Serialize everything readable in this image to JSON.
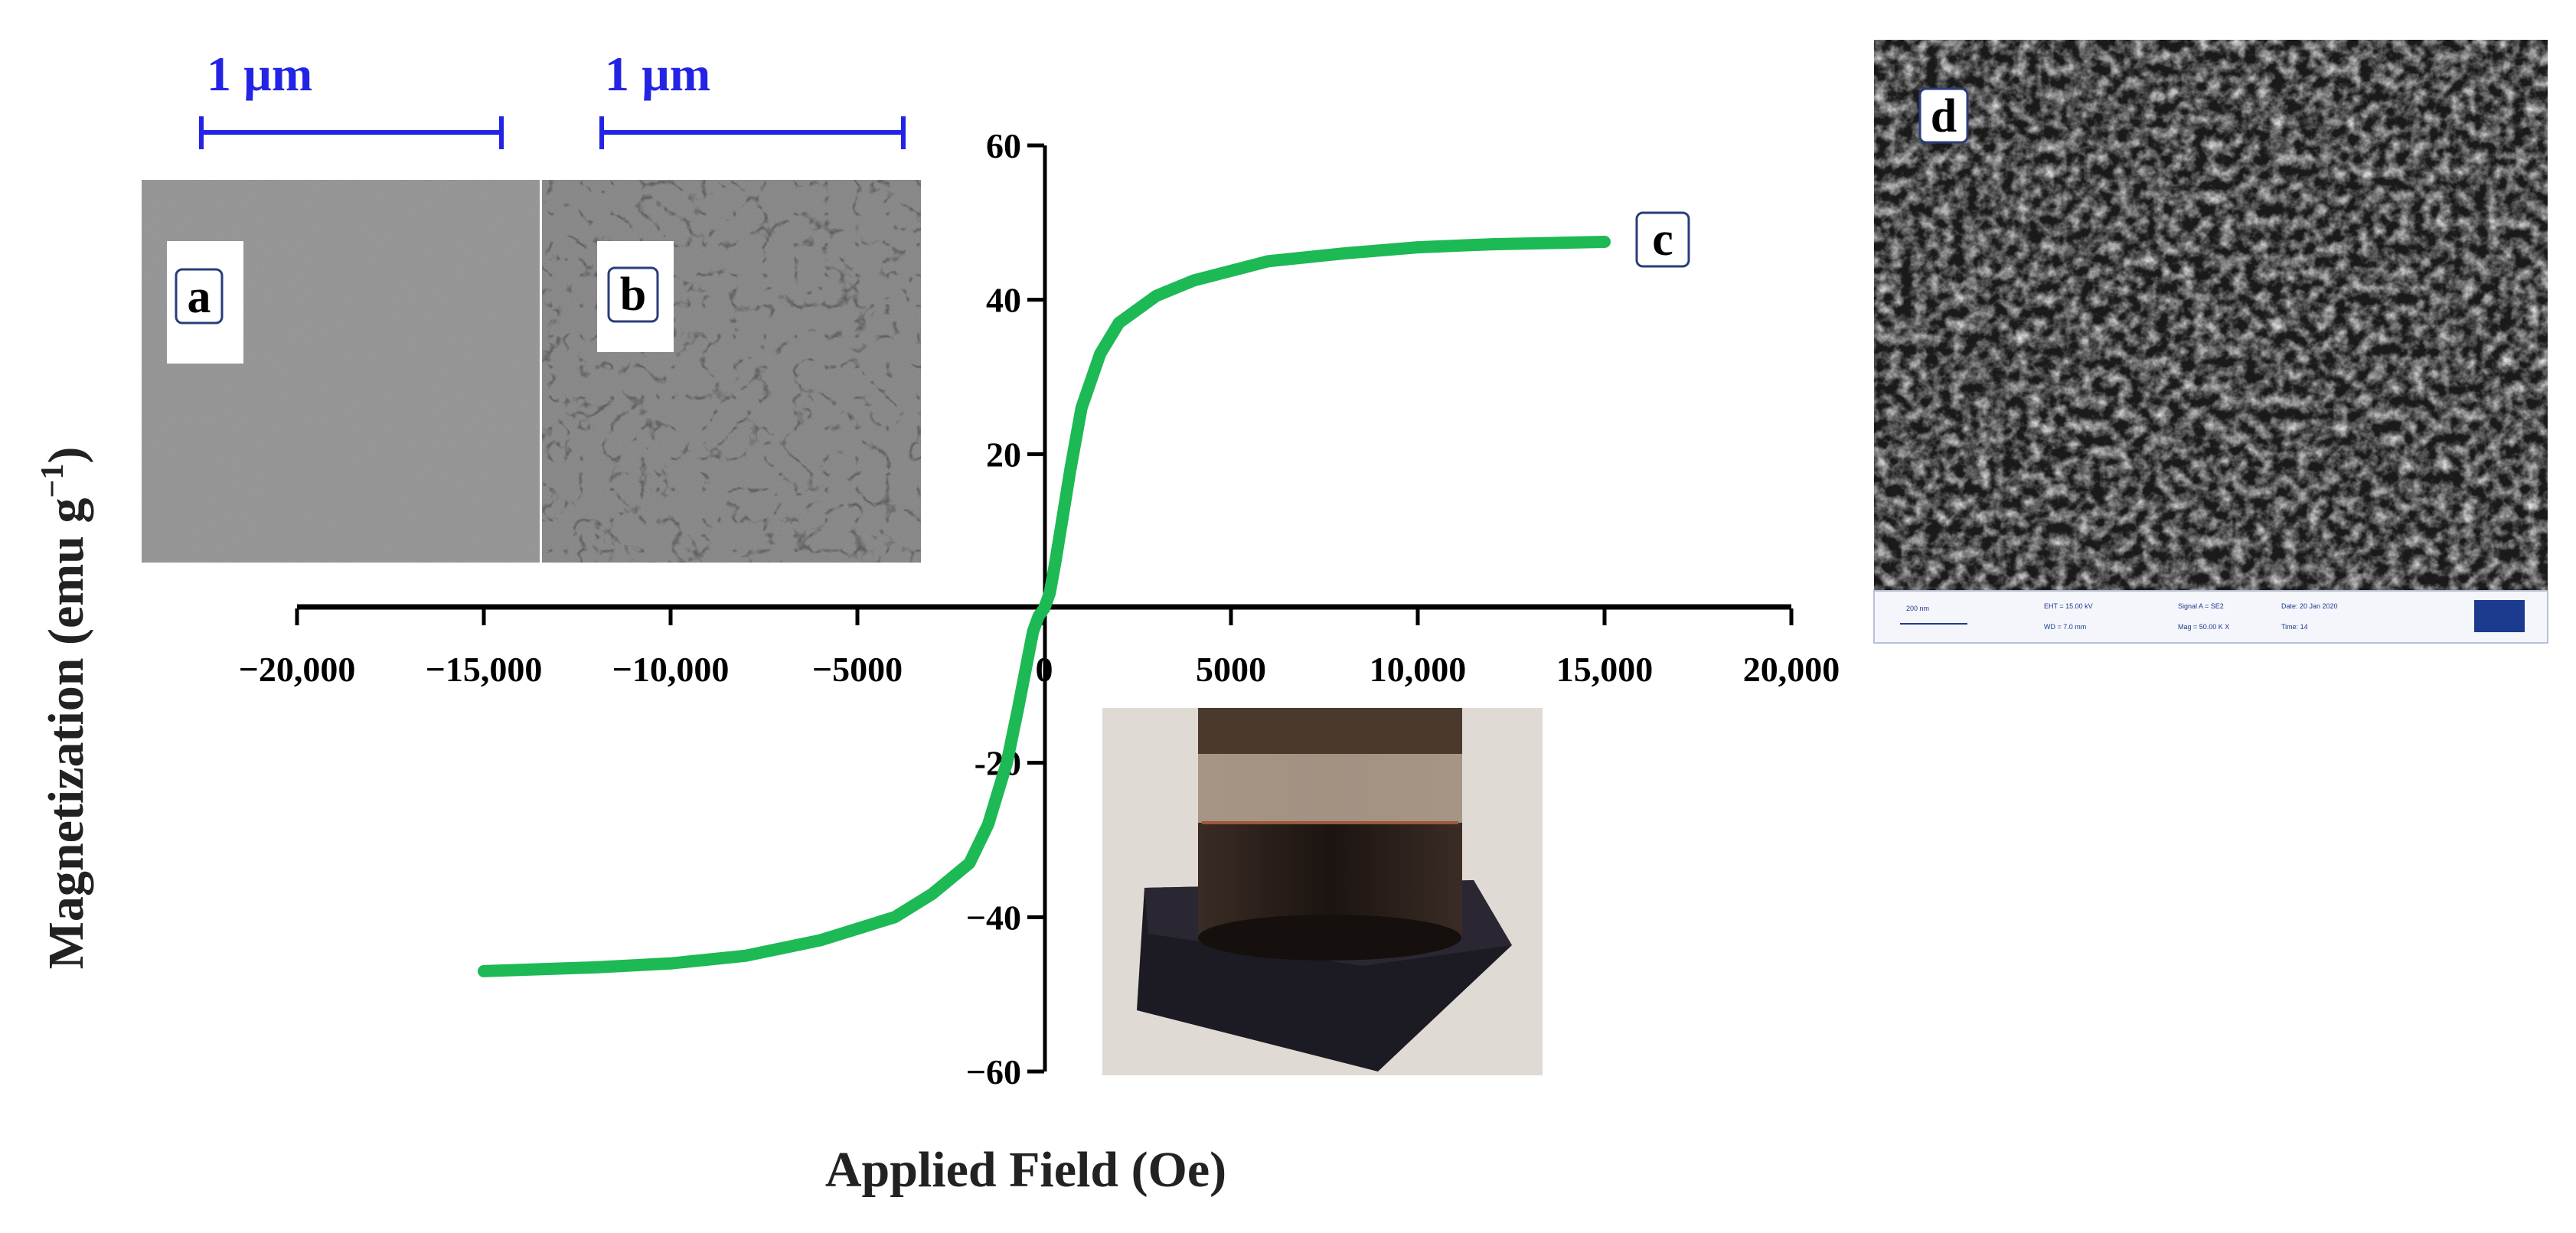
{
  "chart_data": {
    "type": "line",
    "title": "",
    "xlabel": "Applied Field (Oe)",
    "ylabel_main": "Magnetization (emu g",
    "ylabel_sup": "−1",
    "ylabel_close": ")",
    "xlim": [
      -20000,
      20000
    ],
    "ylim": [
      -60,
      60
    ],
    "x_ticks": [
      -20000,
      -15000,
      -10000,
      -5000,
      0,
      5000,
      10000,
      15000,
      20000
    ],
    "x_tick_labels": [
      "−20,000",
      "−15,000",
      "−10,000",
      "−5000",
      "0",
      "5000",
      "10,000",
      "15,000",
      "20,000"
    ],
    "y_ticks": [
      -60,
      -40,
      -20,
      20,
      40,
      60
    ],
    "y_tick_labels": [
      "−60",
      "−40",
      "-20",
      "20",
      "40",
      "60"
    ],
    "series": [
      {
        "color": "#1db954",
        "x": [
          -15000,
          -12000,
          -10000,
          -8000,
          -6000,
          -4000,
          -3000,
          -2000,
          -1500,
          -1000,
          -700,
          -500,
          -300,
          -150,
          0,
          150,
          300,
          500,
          700,
          1000,
          1500,
          2000,
          3000,
          4000,
          6000,
          8000,
          10000,
          12000,
          15000
        ],
        "y": [
          -47,
          -46.5,
          -46,
          -45,
          -43,
          -40,
          -37,
          -33,
          -28,
          -20,
          -13,
          -8,
          -3,
          -1,
          0,
          2,
          6,
          12,
          18,
          26,
          33,
          37,
          40.5,
          42.5,
          45,
          46,
          46.8,
          47.2,
          47.5
        ]
      }
    ]
  },
  "panels": {
    "a": {
      "letter": "a",
      "scale_bar": "1 µm"
    },
    "b": {
      "letter": "b",
      "scale_bar": "1 µm"
    },
    "c": {
      "letter": "c"
    },
    "d": {
      "letter": "d"
    }
  }
}
